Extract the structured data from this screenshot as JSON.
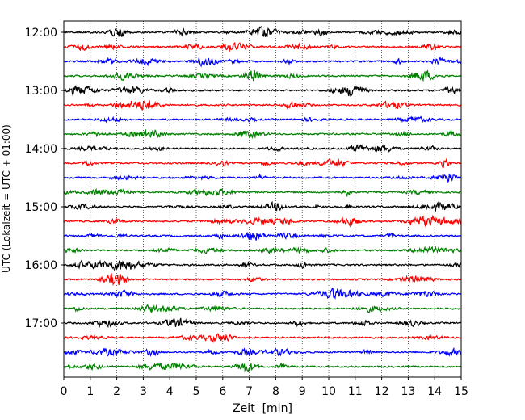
{
  "chart_data": {
    "type": "line",
    "title": "",
    "xlabel": "Zeit  [min]",
    "ylabel": "UTC (Lokalzeit = UTC + 01:00)",
    "xlim": [
      0,
      15
    ],
    "x_ticks": [
      0,
      1,
      2,
      3,
      4,
      5,
      6,
      7,
      8,
      9,
      10,
      11,
      12,
      13,
      14,
      15
    ],
    "y_tick_labels": [
      "12:00",
      "13:00",
      "14:00",
      "15:00",
      "16:00",
      "17:00"
    ],
    "grid": "vertical dotted",
    "trace_interval_minutes": 15,
    "start_time": "12:00",
    "trace_count": 24,
    "trace_colors": [
      "#000000",
      "#ff0000",
      "#0000ff",
      "#008000"
    ]
  }
}
